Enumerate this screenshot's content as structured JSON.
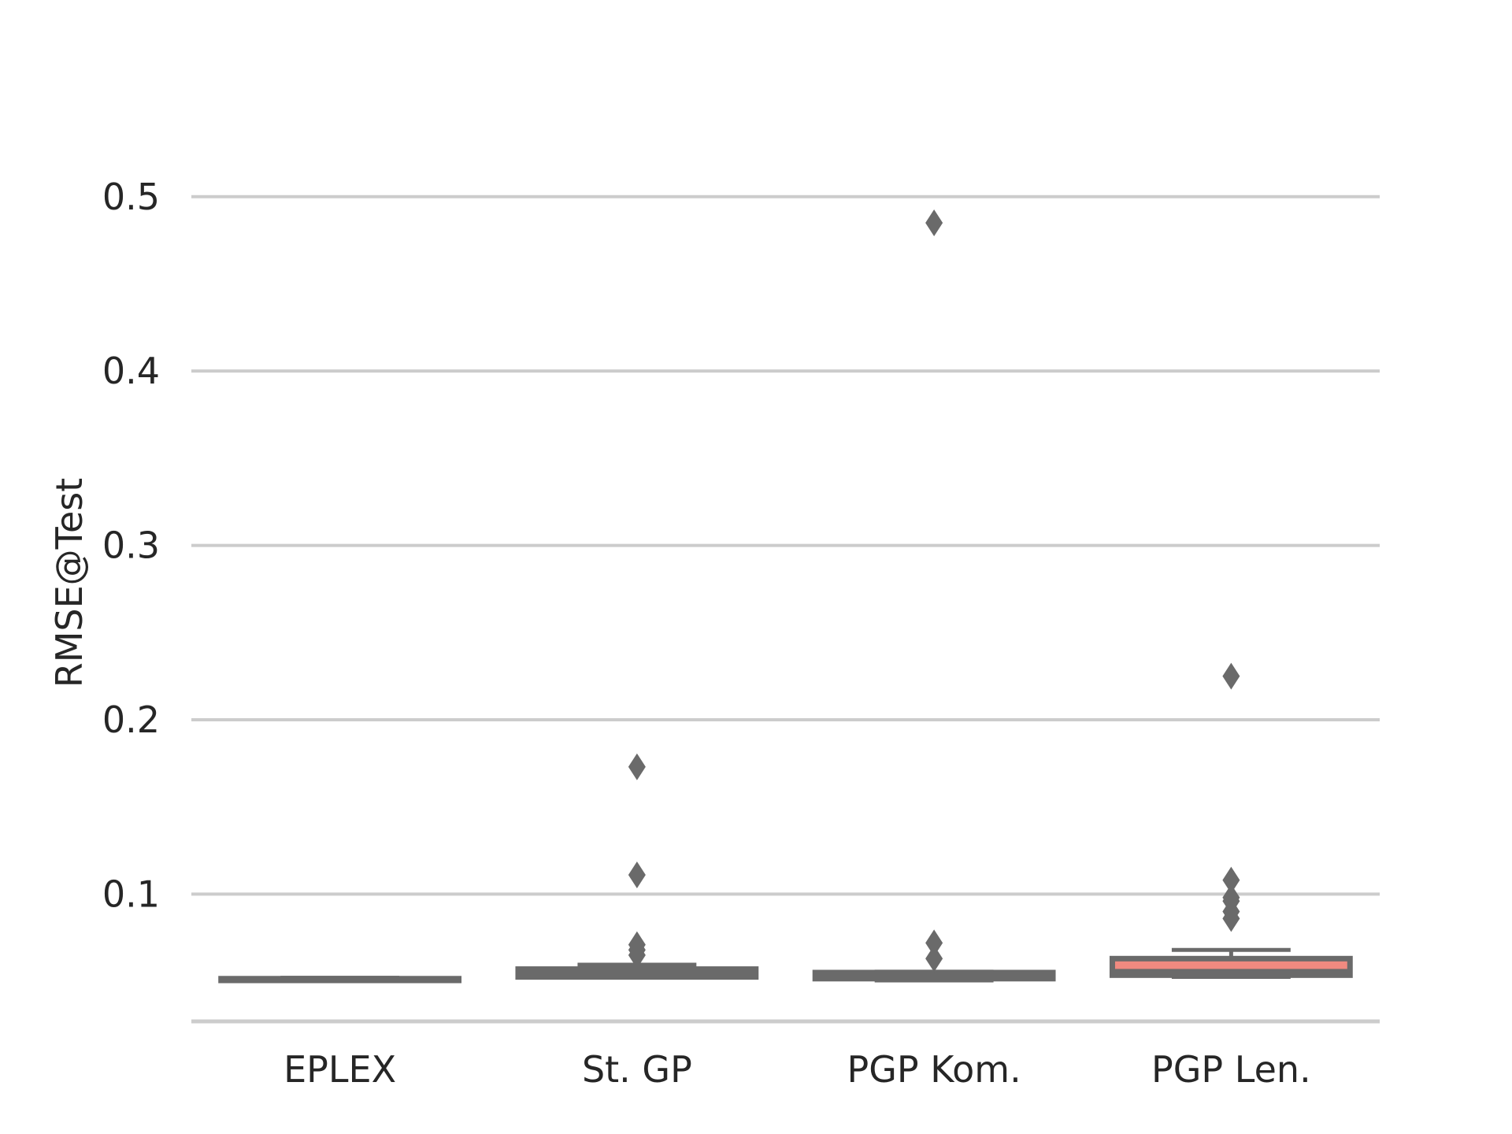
{
  "chart_data": {
    "type": "boxplot",
    "xlabel": "",
    "ylabel": "RMSE@Test",
    "ylim": [
      0.027,
      0.527
    ],
    "yticks": [
      0.1,
      0.2,
      0.3,
      0.4,
      0.5
    ],
    "ytick_labels": [
      "0.1",
      "0.2",
      "0.3",
      "0.4",
      "0.5"
    ],
    "grid": "horizontal",
    "categories": [
      "EPLEX",
      "St. GP",
      "PGP Kom.",
      "PGP Len."
    ],
    "boxes": [
      {
        "category": "EPLEX",
        "whislo": 0.0505,
        "q1": 0.0505,
        "median": 0.051,
        "q3": 0.0515,
        "whishi": 0.052,
        "fliers": [],
        "color": "#6a6a6a"
      },
      {
        "category": "St. GP",
        "whislo": 0.0525,
        "q1": 0.0525,
        "median": 0.055,
        "q3": 0.057,
        "whishi": 0.0595,
        "fliers": [
          0.065,
          0.068,
          0.071,
          0.111,
          0.173
        ],
        "color": "#6a6a6a"
      },
      {
        "category": "PGP Kom.",
        "whislo": 0.0505,
        "q1": 0.0515,
        "median": 0.0535,
        "q3": 0.055,
        "whishi": 0.0555,
        "fliers": [
          0.063,
          0.072,
          0.485
        ],
        "color": "#6a6a6a"
      },
      {
        "category": "PGP Len.",
        "whislo": 0.0525,
        "q1": 0.0535,
        "median": 0.0555,
        "q3": 0.063,
        "whishi": 0.068,
        "fliers": [
          0.086,
          0.09,
          0.096,
          0.098,
          0.108,
          0.225
        ],
        "color": "#f08a80"
      }
    ],
    "colors": {
      "grid": "#cccccc",
      "box_edge": "#6a6a6a",
      "text": "#262626"
    }
  }
}
